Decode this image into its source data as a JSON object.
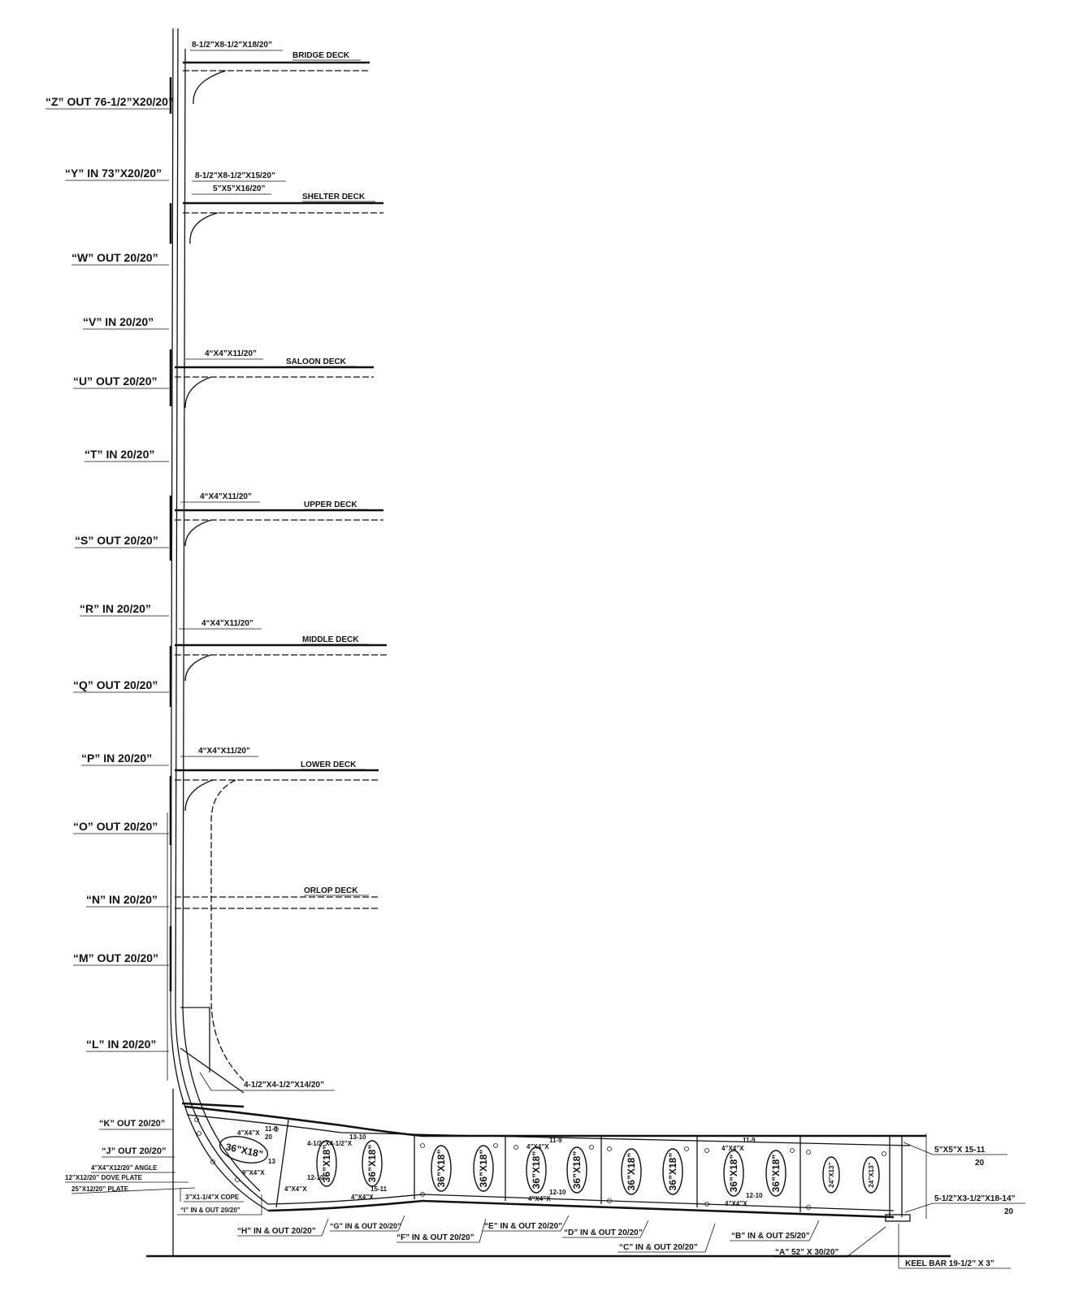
{
  "hull_section": {
    "strakes": [
      {
        "label": "“Z” OUT 76-1/2”X20/20”"
      },
      {
        "label": "“Y”  IN  73”X20/20”"
      },
      {
        "label": "“W” OUT  20/20”"
      },
      {
        "label": "“V”  IN  20/20”"
      },
      {
        "label": "“U” OUT  20/20”"
      },
      {
        "label": "“T”  IN  20/20”"
      },
      {
        "label": "“S” OUT  20/20”"
      },
      {
        "label": "“R”  IN  20/20”"
      },
      {
        "label": "“Q” OUT  20/20”"
      },
      {
        "label": "“P”  IN  20/20”"
      },
      {
        "label": "“O” OUT  20/20”"
      },
      {
        "label": "“N”  IN  20/20”"
      },
      {
        "label": "“M” OUT  20/20”"
      },
      {
        "label": "“L”  IN  20/20”"
      },
      {
        "label": "“K” OUT  20/20”"
      },
      {
        "label": "“J” OUT  20/20”"
      }
    ],
    "decks": [
      {
        "name": "BRIDGE  DECK",
        "angle": "8-1/2”X8-1/2”X18/20”"
      },
      {
        "name": "SHELTER  DECK",
        "angle": "8-1/2”X8-1/2”X15/20”",
        "angle2": "5”X5”X16/20”"
      },
      {
        "name": "SALOON  DECK",
        "angle": "4“X4”X11/20”"
      },
      {
        "name": "UPPER  DECK",
        "angle": "4“X4”X11/20”"
      },
      {
        "name": "MIDDLE  DECK",
        "angle": "4“X4”X11/20”"
      },
      {
        "name": "LOWER  DECK",
        "angle": "4“X4”X11/20”"
      },
      {
        "name": "ORLOP  DECK"
      }
    ],
    "bilge_angle": "4-1/2”X4-1/2”X14/20”",
    "left_notes": [
      "4”X4”X12/20” ANGLE",
      "12”X12/20” DOVE PLATE",
      "25”X12/20”  PLATE"
    ],
    "cope": "3”X1-1/4”X COPE",
    "keel_strake_i": "“I” IN & OUT 20/20”",
    "bottom_strakes": [
      "“H” IN & OUT 20/20”",
      "“G” IN & OUT 20/20”",
      "“F” IN & OUT 20/20”",
      "“E” IN & OUT 20/20”",
      "“D” IN & OUT 20/20”",
      "“C”  IN & OUT 20/20”",
      "“B” IN & OUT 25/20”",
      "“A”  52” X 30/20”"
    ],
    "right_notes": {
      "angle_top": "5”X5”X 15-11",
      "angle_top_den": "20",
      "angle_bottom": "5-1/2”X3-1/2”X18-14”",
      "angle_bottom_den": "20",
      "keel_bar": "KEEL BAR  19-1/2” X 3”"
    },
    "floor_holes": [
      "36”X18”",
      "36”X18”",
      "36”X18”",
      "36”X18”",
      "36”X18”",
      "36”X18”",
      "36”X18”",
      "36”X18”",
      "36”X18”",
      "36”X18”",
      "36”X18”",
      "36”X18”",
      "24”X13”",
      "24”X13”"
    ],
    "floor_notes": [
      "4”X4”X",
      "20",
      "11-9",
      "13",
      "4-1/2”X4-1/2”X",
      "13-10",
      "9”X4”X",
      "12-10",
      "15-11",
      "11-9",
      "12-10"
    ]
  }
}
